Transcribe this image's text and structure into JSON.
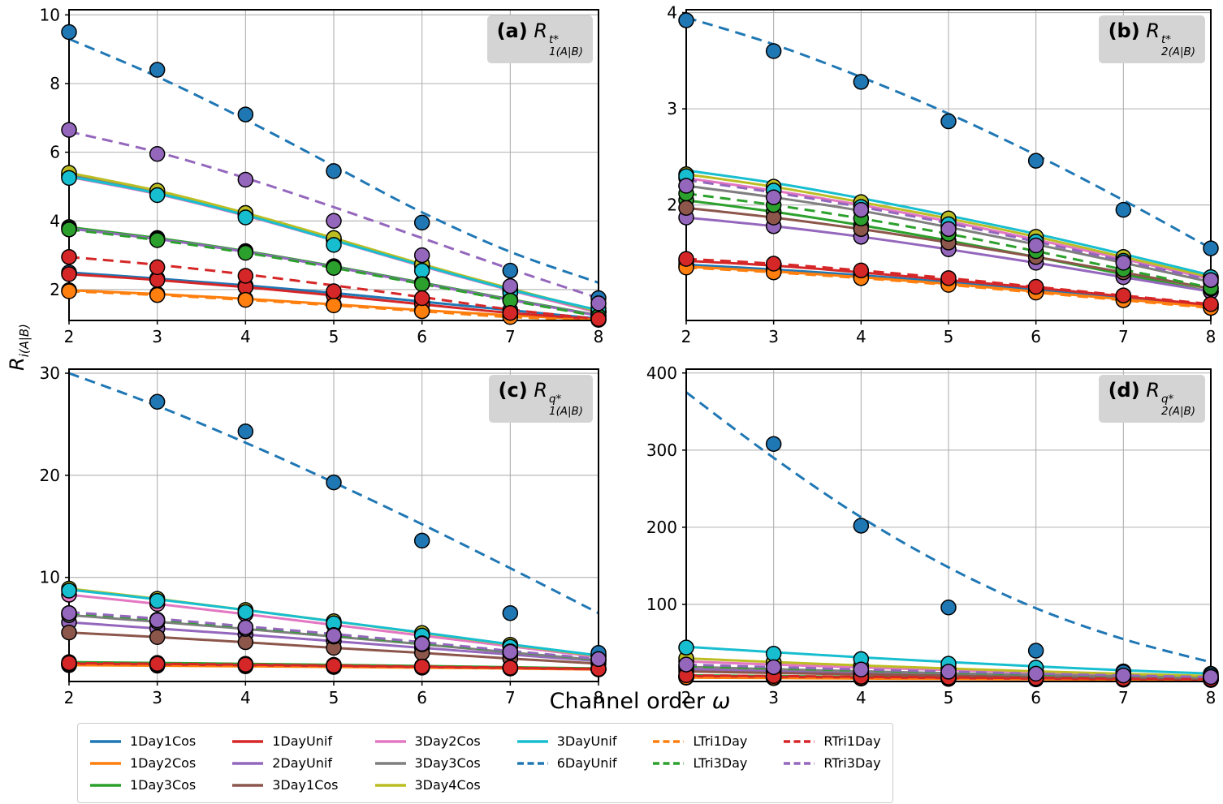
{
  "figure": {
    "background": "#ffffff",
    "ylabel": {
      "base": "R",
      "sub": "i(A|B)"
    },
    "xlabel": {
      "text": "Channel order",
      "symbol": "ω"
    }
  },
  "legend": {
    "position": "bottom",
    "column_sizes": [
      3,
      3,
      3,
      2,
      2,
      2
    ],
    "items": [
      {
        "label": "1Day1Cos",
        "color": "#1f77b4",
        "dash": "solid"
      },
      {
        "label": "1Day2Cos",
        "color": "#ff7f0e",
        "dash": "solid"
      },
      {
        "label": "1Day3Cos",
        "color": "#2ca02c",
        "dash": "solid"
      },
      {
        "label": "1DayUnif",
        "color": "#d62728",
        "dash": "solid"
      },
      {
        "label": "2DayUnif",
        "color": "#9467bd",
        "dash": "solid"
      },
      {
        "label": "3Day1Cos",
        "color": "#8c564b",
        "dash": "solid"
      },
      {
        "label": "3Day2Cos",
        "color": "#e377c2",
        "dash": "solid"
      },
      {
        "label": "3Day3Cos",
        "color": "#7f7f7f",
        "dash": "solid"
      },
      {
        "label": "3Day4Cos",
        "color": "#bcbd22",
        "dash": "solid"
      },
      {
        "label": "3DayUnif",
        "color": "#17becf",
        "dash": "solid"
      },
      {
        "label": "6DayUnif",
        "color": "#1f77b4",
        "dash": "dashed"
      },
      {
        "label": "LTri1Day",
        "color": "#ff7f0e",
        "dash": "dashed"
      },
      {
        "label": "LTri3Day",
        "color": "#2ca02c",
        "dash": "dashed"
      },
      {
        "label": "RTri1Day",
        "color": "#d62728",
        "dash": "dashed"
      },
      {
        "label": "RTri3Day",
        "color": "#9467bd",
        "dash": "dashed"
      }
    ]
  },
  "chart_data": [
    {
      "id": "a",
      "type": "line",
      "title": {
        "tag": "(a)",
        "base": "R",
        "sup": "t*",
        "sub": "1(A|B)"
      },
      "xlabel": "Channel order ω",
      "ylabel": "R_i(A|B)",
      "grid": true,
      "x": [
        2,
        3,
        4,
        5,
        6,
        7,
        8
      ],
      "xlim": [
        2,
        8
      ],
      "ylim": [
        1.1,
        10.15
      ],
      "xticks": [
        2,
        3,
        4,
        5,
        6,
        7,
        8
      ],
      "yticks": [
        2,
        4,
        6,
        8,
        10
      ],
      "series": [
        {
          "name": "1Day1Cos",
          "values": [
            2.5,
            2.32,
            2.12,
            1.9,
            1.65,
            1.4,
            1.15
          ]
        },
        {
          "name": "1Day2Cos",
          "values": [
            1.98,
            1.87,
            1.73,
            1.57,
            1.4,
            1.25,
            1.12
          ]
        },
        {
          "name": "1Day3Cos",
          "values": [
            3.82,
            3.5,
            3.12,
            2.68,
            2.2,
            1.72,
            1.25
          ]
        },
        {
          "name": "1DayUnif",
          "values": [
            2.45,
            2.28,
            2.07,
            1.83,
            1.57,
            1.32,
            1.13
          ]
        },
        {
          "name": "2DayUnif",
          "values": [
            3.78,
            3.47,
            3.1,
            2.66,
            2.18,
            1.7,
            1.24
          ]
        },
        {
          "name": "3Day1Cos",
          "values": [
            5.32,
            4.82,
            4.18,
            3.45,
            2.7,
            2.0,
            1.35
          ]
        },
        {
          "name": "3Day2Cos",
          "values": [
            5.28,
            4.78,
            4.15,
            3.43,
            2.68,
            1.98,
            1.33
          ]
        },
        {
          "name": "3Day3Cos",
          "values": [
            5.35,
            4.85,
            4.2,
            3.47,
            2.72,
            2.02,
            1.36
          ]
        },
        {
          "name": "3Day4Cos",
          "values": [
            5.4,
            4.88,
            4.23,
            3.5,
            2.74,
            2.03,
            1.37
          ]
        },
        {
          "name": "3DayUnif",
          "values": [
            5.3,
            4.8,
            4.17,
            3.44,
            2.7,
            2.0,
            1.4
          ],
          "markers": [
            5.25,
            4.75,
            4.1,
            3.3,
            2.55,
            1.9,
            1.45
          ]
        },
        {
          "name": "6DayUnif",
          "values": [
            9.3,
            8.2,
            6.95,
            5.6,
            4.25,
            3.1,
            2.2
          ],
          "markers": [
            9.5,
            8.4,
            7.1,
            5.45,
            3.95,
            2.55,
            1.75
          ]
        },
        {
          "name": "LTri1Day",
          "values": [
            1.95,
            1.84,
            1.7,
            1.54,
            1.37,
            1.2,
            1.12
          ]
        },
        {
          "name": "LTri3Day",
          "values": [
            3.75,
            3.44,
            3.07,
            2.63,
            2.16,
            1.68,
            1.22
          ]
        },
        {
          "name": "RTri1Day",
          "values": [
            2.95,
            2.72,
            2.44,
            2.12,
            1.78,
            1.42,
            1.14
          ],
          "markers": [
            2.95,
            2.65,
            2.4,
            1.95,
            1.75,
            1.32,
            1.14
          ]
        },
        {
          "name": "RTri3Day",
          "values": [
            6.6,
            6.0,
            5.25,
            4.4,
            3.5,
            2.6,
            1.75
          ],
          "markers": [
            6.65,
            5.95,
            5.2,
            4.0,
            3.0,
            2.1,
            1.6
          ]
        }
      ]
    },
    {
      "id": "b",
      "type": "line",
      "title": {
        "tag": "(b)",
        "base": "R",
        "sup": "t*",
        "sub": "2(A|B)"
      },
      "xlabel": "Channel order ω",
      "ylabel": "R_i(A|B)",
      "grid": true,
      "x": [
        2,
        3,
        4,
        5,
        6,
        7,
        8
      ],
      "xlim": [
        2,
        8
      ],
      "ylim": [
        0.8,
        4.03
      ],
      "xticks": [
        2,
        3,
        4,
        5,
        6,
        7,
        8
      ],
      "yticks": [
        2,
        3,
        4
      ],
      "series": [
        {
          "name": "1Day1Cos",
          "values": [
            1.38,
            1.33,
            1.27,
            1.2,
            1.12,
            1.04,
            0.96
          ]
        },
        {
          "name": "1Day2Cos",
          "values": [
            1.36,
            1.31,
            1.25,
            1.18,
            1.1,
            1.02,
            0.94
          ]
        },
        {
          "name": "1Day3Cos",
          "values": [
            2.05,
            1.93,
            1.79,
            1.63,
            1.46,
            1.28,
            1.1
          ]
        },
        {
          "name": "1DayUnif",
          "values": [
            1.42,
            1.37,
            1.3,
            1.22,
            1.14,
            1.05,
            0.96
          ]
        },
        {
          "name": "2DayUnif",
          "values": [
            1.87,
            1.78,
            1.67,
            1.54,
            1.4,
            1.25,
            1.1
          ]
        },
        {
          "name": "3Day1Cos",
          "values": [
            1.97,
            1.87,
            1.75,
            1.61,
            1.46,
            1.3,
            1.13
          ]
        },
        {
          "name": "3Day2Cos",
          "values": [
            2.28,
            2.15,
            2.0,
            1.83,
            1.64,
            1.44,
            1.23
          ]
        },
        {
          "name": "3Day3Cos",
          "values": [
            2.2,
            2.08,
            1.94,
            1.77,
            1.59,
            1.4,
            1.2
          ]
        },
        {
          "name": "3Day4Cos",
          "values": [
            2.32,
            2.19,
            2.03,
            1.86,
            1.67,
            1.46,
            1.25
          ]
        },
        {
          "name": "3DayUnif",
          "values": [
            2.36,
            2.23,
            2.07,
            1.89,
            1.7,
            1.49,
            1.27
          ],
          "markers": [
            2.3,
            2.15,
            1.98,
            1.8,
            1.62,
            1.42,
            1.25
          ]
        },
        {
          "name": "6DayUnif",
          "values": [
            3.95,
            3.67,
            3.33,
            2.95,
            2.52,
            2.05,
            1.55
          ],
          "markers": [
            3.92,
            3.6,
            3.28,
            2.87,
            2.46,
            1.95,
            1.55
          ]
        },
        {
          "name": "LTri1Day",
          "values": [
            1.35,
            1.3,
            1.24,
            1.17,
            1.09,
            1.01,
            0.93
          ]
        },
        {
          "name": "LTri3Day",
          "values": [
            2.12,
            2.0,
            1.86,
            1.7,
            1.52,
            1.33,
            1.14
          ]
        },
        {
          "name": "RTri1Day",
          "values": [
            1.44,
            1.39,
            1.32,
            1.24,
            1.15,
            1.06,
            0.97
          ]
        },
        {
          "name": "RTri3Day",
          "values": [
            2.26,
            2.13,
            1.98,
            1.81,
            1.62,
            1.42,
            1.22
          ],
          "markers": [
            2.2,
            2.08,
            1.95,
            1.75,
            1.58,
            1.4,
            1.22
          ]
        }
      ]
    },
    {
      "id": "c",
      "type": "line",
      "title": {
        "tag": "(c)",
        "base": "R",
        "sup": "q*",
        "sub": "1(A|B)"
      },
      "xlabel": "Channel order ω",
      "ylabel": "R_i(A|B)",
      "grid": true,
      "x": [
        2,
        3,
        4,
        5,
        6,
        7,
        8
      ],
      "xlim": [
        2,
        8
      ],
      "ylim": [
        -0.2,
        30.4
      ],
      "xticks": [
        2,
        3,
        4,
        5,
        6,
        7,
        8
      ],
      "yticks": [
        10,
        20,
        30
      ],
      "series": [
        {
          "name": "1Day1Cos",
          "values": [
            1.45,
            1.4,
            1.33,
            1.26,
            1.18,
            1.1,
            1.0
          ]
        },
        {
          "name": "1Day2Cos",
          "values": [
            1.4,
            1.35,
            1.29,
            1.22,
            1.15,
            1.07,
            0.98
          ]
        },
        {
          "name": "1Day3Cos",
          "values": [
            1.7,
            1.62,
            1.53,
            1.43,
            1.32,
            1.2,
            1.08
          ]
        },
        {
          "name": "1DayUnif",
          "values": [
            1.55,
            1.48,
            1.4,
            1.32,
            1.22,
            1.12,
            1.0
          ]
        },
        {
          "name": "2DayUnif",
          "values": [
            5.6,
            5.0,
            4.4,
            3.75,
            3.1,
            2.45,
            1.8
          ]
        },
        {
          "name": "3Day1Cos",
          "values": [
            4.6,
            4.15,
            3.65,
            3.1,
            2.6,
            2.05,
            1.55
          ]
        },
        {
          "name": "3Day2Cos",
          "values": [
            8.3,
            7.4,
            6.4,
            5.35,
            4.3,
            3.25,
            2.2
          ]
        },
        {
          "name": "3Day3Cos",
          "values": [
            6.3,
            5.65,
            4.95,
            4.2,
            3.45,
            2.65,
            1.9
          ]
        },
        {
          "name": "3Day4Cos",
          "values": [
            8.9,
            7.9,
            6.8,
            5.7,
            4.55,
            3.4,
            2.3
          ]
        },
        {
          "name": "3DayUnif",
          "values": [
            8.8,
            7.85,
            6.8,
            5.7,
            4.6,
            3.45,
            2.35
          ],
          "markers": [
            8.7,
            7.7,
            6.6,
            5.5,
            4.3,
            3.2,
            2.4
          ]
        },
        {
          "name": "6DayUnif",
          "values": [
            30.0,
            26.8,
            23.2,
            19.3,
            15.2,
            10.9,
            6.5
          ],
          "markers": [
            null,
            27.2,
            24.3,
            19.3,
            13.6,
            6.5,
            2.6
          ]
        },
        {
          "name": "LTri1Day",
          "values": [
            1.5,
            1.44,
            1.37,
            1.29,
            1.2,
            1.11,
            1.0
          ]
        },
        {
          "name": "LTri3Day",
          "values": [
            6.5,
            5.85,
            5.1,
            4.35,
            3.55,
            2.75,
            1.95
          ]
        },
        {
          "name": "RTri1Day",
          "values": [
            1.6,
            1.53,
            1.45,
            1.36,
            1.26,
            1.15,
            1.03
          ]
        },
        {
          "name": "RTri3Day",
          "values": [
            6.6,
            5.95,
            5.2,
            4.45,
            3.65,
            2.8,
            2.0
          ],
          "markers": [
            6.5,
            5.8,
            5.1,
            4.3,
            3.5,
            2.7,
            2.0
          ]
        }
      ]
    },
    {
      "id": "d",
      "type": "line",
      "title": {
        "tag": "(d)",
        "base": "R",
        "sup": "q*",
        "sub": "2(A|B)"
      },
      "xlabel": "Channel order ω",
      "ylabel": "R_i(A|B)",
      "grid": true,
      "x": [
        2,
        3,
        4,
        5,
        6,
        7,
        8
      ],
      "xlim": [
        2,
        8
      ],
      "ylim": [
        0,
        405
      ],
      "xticks": [
        2,
        3,
        4,
        5,
        6,
        7,
        8
      ],
      "yticks": [
        100,
        200,
        300,
        400
      ],
      "series": [
        {
          "name": "1Day1Cos",
          "values": [
            6,
            5.2,
            4.5,
            3.8,
            3.2,
            2.7,
            2.2
          ]
        },
        {
          "name": "1Day2Cos",
          "values": [
            5,
            4.4,
            3.8,
            3.3,
            2.8,
            2.4,
            2.0
          ]
        },
        {
          "name": "1Day3Cos",
          "values": [
            8,
            7,
            6,
            5.1,
            4.3,
            3.6,
            3.0
          ]
        },
        {
          "name": "1DayUnif",
          "values": [
            7,
            6.1,
            5.3,
            4.5,
            3.8,
            3.2,
            2.6
          ]
        },
        {
          "name": "2DayUnif",
          "values": [
            16,
            13.5,
            11.2,
            9.2,
            7.4,
            5.8,
            4.4
          ]
        },
        {
          "name": "3Day1Cos",
          "values": [
            13,
            11,
            9.2,
            7.6,
            6.1,
            4.8,
            3.7
          ]
        },
        {
          "name": "3Day2Cos",
          "values": [
            26,
            22,
            18.2,
            14.8,
            11.7,
            9.0,
            6.6
          ]
        },
        {
          "name": "3Day3Cos",
          "values": [
            19,
            16,
            13.3,
            10.8,
            8.6,
            6.6,
            4.9
          ]
        },
        {
          "name": "3Day4Cos",
          "values": [
            30,
            25.2,
            20.8,
            16.8,
            13.2,
            10.0,
            7.2
          ]
        },
        {
          "name": "3DayUnif",
          "values": [
            45,
            38,
            31.3,
            25.2,
            19.6,
            14.6,
            10.2
          ],
          "markers": [
            44,
            36,
            29,
            23,
            18,
            13,
            10
          ]
        },
        {
          "name": "6DayUnif",
          "values": [
            375,
            290,
            213,
            148,
            95,
            55,
            25
          ],
          "markers": [
            null,
            308,
            202,
            96,
            40,
            12,
            8
          ]
        },
        {
          "name": "LTri1Day",
          "values": [
            5.5,
            4.9,
            4.3,
            3.7,
            3.2,
            2.7,
            2.3
          ]
        },
        {
          "name": "LTri3Day",
          "values": [
            20,
            17,
            14.2,
            11.6,
            9.2,
            7.1,
            5.3
          ]
        },
        {
          "name": "RTri1Day",
          "values": [
            8,
            7,
            6.1,
            5.2,
            4.4,
            3.7,
            3.0
          ]
        },
        {
          "name": "RTri3Day",
          "values": [
            22,
            18.6,
            15.5,
            12.7,
            10.1,
            7.8,
            5.8
          ]
        }
      ]
    }
  ]
}
